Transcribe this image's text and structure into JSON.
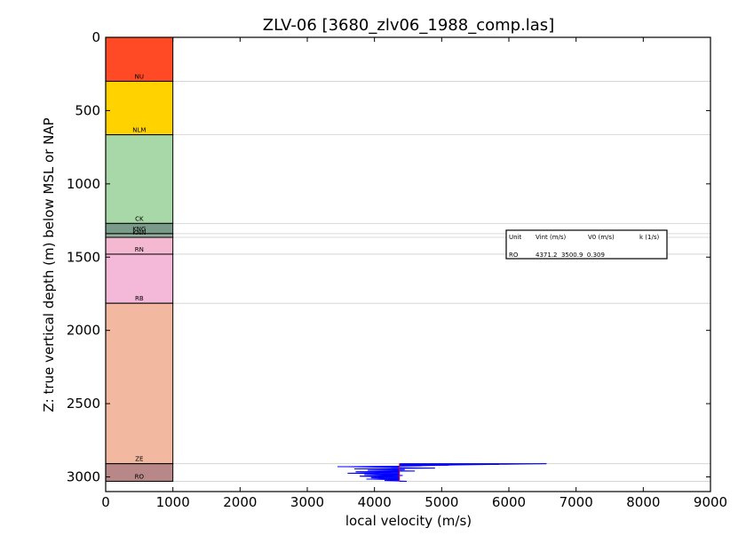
{
  "chart_data": {
    "type": "scatter",
    "title": "ZLV-06 [3680_zlv06_1988_comp.las]",
    "xlabel": "local velocity (m/s)",
    "ylabel": "Z: true vertical depth (m) below MSL or NAP",
    "xlim": [
      0,
      9000
    ],
    "ylim": [
      3100,
      0
    ],
    "x_ticks": [
      "0",
      "1000",
      "2000",
      "3000",
      "4000",
      "5000",
      "6000",
      "7000",
      "8000",
      "9000"
    ],
    "y_ticks": [
      "0",
      "500",
      "1000",
      "1500",
      "2000",
      "2500",
      "3000"
    ],
    "units": [
      {
        "name": "NU",
        "top": 0,
        "base": 300,
        "color": "#ff4a25"
      },
      {
        "name": "NLM",
        "top": 300,
        "base": 665,
        "color": "#ffd200"
      },
      {
        "name": "CK",
        "top": 665,
        "base": 1270,
        "color": "#a8d8a8"
      },
      {
        "name": "KNG",
        "top": 1270,
        "base": 1340,
        "color": "#7a9a8a"
      },
      {
        "name": "KNN",
        "top": 1340,
        "base": 1365,
        "color": "#8fb09a"
      },
      {
        "name": "RN",
        "top": 1365,
        "base": 1480,
        "color": "#f4b8d0"
      },
      {
        "name": "RB",
        "top": 1480,
        "base": 1815,
        "color": "#f4b8d8"
      },
      {
        "name": "ZE",
        "top": 1815,
        "base": 2910,
        "color": "#f2b8a0"
      },
      {
        "name": "RO",
        "top": 2910,
        "base": 3030,
        "color": "#b88888"
      }
    ],
    "boundaries": [
      300,
      665,
      1270,
      1340,
      1365,
      1480,
      1815,
      2910,
      3030
    ],
    "velocity_series": {
      "name": "",
      "color": "#0000ff",
      "points": [
        [
          6560,
          2910
        ],
        [
          5850,
          2915
        ],
        [
          5100,
          2920
        ],
        [
          4700,
          2925
        ],
        [
          3450,
          2930
        ],
        [
          4250,
          2935
        ],
        [
          4900,
          2940
        ],
        [
          3700,
          2945
        ],
        [
          4450,
          2950
        ],
        [
          3900,
          2955
        ],
        [
          4600,
          2960
        ],
        [
          3720,
          2965
        ],
        [
          4300,
          2970
        ],
        [
          3600,
          2975
        ],
        [
          4100,
          2980
        ],
        [
          3850,
          2985
        ],
        [
          4420,
          2990
        ],
        [
          3780,
          2995
        ],
        [
          4050,
          3000
        ],
        [
          3950,
          3005
        ],
        [
          4200,
          3010
        ],
        [
          3880,
          3015
        ],
        [
          4350,
          3020
        ],
        [
          4150,
          3025
        ],
        [
          4480,
          3030
        ]
      ]
    },
    "vint_marker": {
      "x": 4371.2,
      "y_top": 2910,
      "y_base": 3030
    },
    "table": {
      "headers": [
        "Unit",
        "Vint (m/s)",
        "V0 (m/s)",
        "k (1/s)"
      ],
      "rows": [
        {
          "unit": "RO",
          "values": "4371.2  3500.9  0.309"
        }
      ]
    }
  }
}
